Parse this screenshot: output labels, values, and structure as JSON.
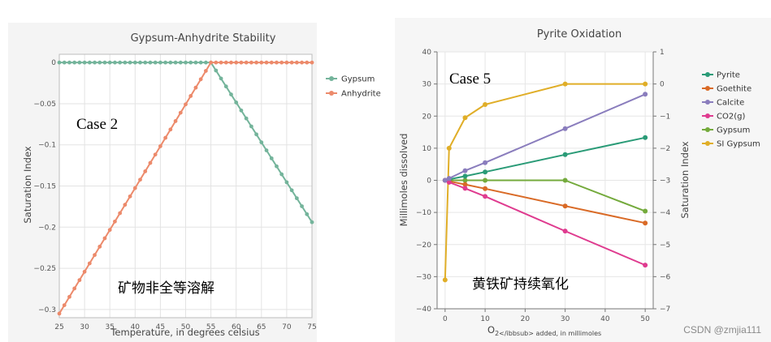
{
  "chart_data": [
    {
      "type": "line",
      "title": "Gypsum-Anhydrite Stability",
      "xlabel": "Temperature, in degrees celsius",
      "ylabel": "Saturation Index",
      "xlim": [
        25,
        75
      ],
      "ylim": [
        -0.31,
        0.01
      ],
      "xticks": [
        25,
        30,
        35,
        40,
        45,
        50,
        55,
        60,
        65,
        70,
        75
      ],
      "yticks": [
        0,
        -0.05,
        -0.1,
        -0.15,
        -0.2,
        -0.25,
        -0.3
      ],
      "ytick_labels": [
        "0",
        "−0.05",
        "−0.1",
        "−0.15",
        "−0.2",
        "−0.25",
        "−0.3"
      ],
      "series": [
        {
          "name": "Gypsum",
          "color": "#74b49b",
          "points": [
            [
              25,
              0
            ],
            [
              55,
              0
            ],
            [
              75,
              -0.194
            ]
          ]
        },
        {
          "name": "Anhydrite",
          "color": "#ec8a6b",
          "points": [
            [
              25,
              -0.305
            ],
            [
              55,
              0
            ],
            [
              75,
              0
            ]
          ]
        }
      ],
      "legend_position": "top-right",
      "annotation_case": "Case 2",
      "annotation_cn": "矿物非全等溶解"
    },
    {
      "type": "line",
      "title": "Pyrite Oxidation",
      "xlabel": "O2</ibbsub> added, in millimoles",
      "xlabel_main": "O",
      "xlabel_rest": "2</ibbsub> added, in millimoles",
      "ylabel": "Millimoles dissolved",
      "y2label": "Saturation Index",
      "x": [
        0,
        1,
        5,
        10,
        30,
        50
      ],
      "xlim": [
        -2,
        52
      ],
      "ylim": [
        -40,
        40
      ],
      "y2lim": [
        -7,
        1
      ],
      "xticks": [
        0,
        10,
        20,
        30,
        40,
        50
      ],
      "yticks": [
        40,
        30,
        20,
        10,
        0,
        -10,
        -20,
        -30,
        -40
      ],
      "ytick_labels": [
        "40",
        "30",
        "20",
        "10",
        "0",
        "−10",
        "−20",
        "−30",
        "−40"
      ],
      "y2ticks": [
        1,
        0,
        -1,
        -2,
        -3,
        -4,
        -5,
        -6,
        -7
      ],
      "y2tick_labels": [
        "1",
        "0",
        "−1",
        "−2",
        "−3",
        "−4",
        "−5",
        "−6",
        "−7"
      ],
      "series": [
        {
          "name": "Pyrite",
          "color": "#2a9b77",
          "axis": "left",
          "values": [
            0,
            0.3,
            1.3,
            2.6,
            8,
            13.3
          ]
        },
        {
          "name": "Goethite",
          "color": "#d96a26",
          "axis": "left",
          "values": [
            0,
            -0.3,
            -1.3,
            -2.6,
            -8,
            -13.3
          ]
        },
        {
          "name": "Calcite",
          "color": "#8a7dbd",
          "axis": "left",
          "values": [
            0,
            0.6,
            3,
            5.5,
            16.1,
            26.8
          ]
        },
        {
          "name": "CO2(g)",
          "color": "#df3b8f",
          "axis": "left",
          "values": [
            0,
            -0.6,
            -2.5,
            -5,
            -15.8,
            -26.4
          ]
        },
        {
          "name": "Gypsum",
          "color": "#74aa3c",
          "axis": "left",
          "values": [
            0,
            0,
            0,
            0,
            0,
            -9.6
          ]
        },
        {
          "name": "SI Gypsum",
          "color": "#e0ae28",
          "axis": "right",
          "values": [
            -6.1,
            -2,
            -1.05,
            -0.64,
            0,
            0
          ]
        }
      ],
      "legend_position": "right",
      "annotation_case": "Case 5",
      "annotation_cn": "黄铁矿持续氧化"
    }
  ],
  "watermark": "CSDN @zmjia111"
}
